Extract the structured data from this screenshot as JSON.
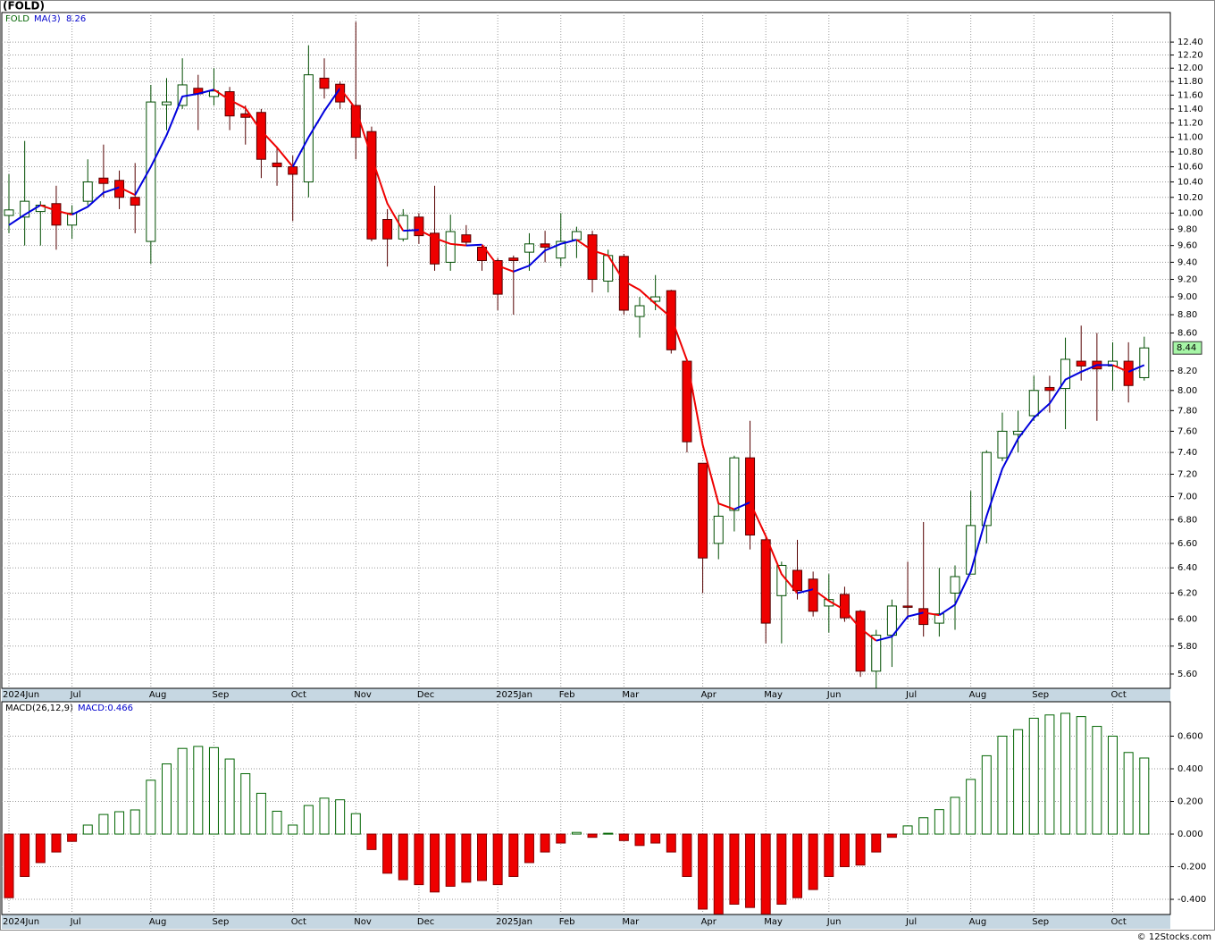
{
  "chart_data": [
    {
      "type": "candlestick",
      "title": "(FOLD)",
      "symbol": "FOLD",
      "log_scale": true,
      "grid": true,
      "categories": [
        "2024Jun",
        null,
        null,
        null,
        "Jul",
        null,
        null,
        null,
        null,
        "Aug",
        null,
        null,
        null,
        "Sep",
        null,
        null,
        null,
        null,
        "Oct",
        null,
        null,
        null,
        "Nov",
        null,
        null,
        null,
        "Dec",
        null,
        null,
        null,
        null,
        "2025Jan",
        null,
        null,
        null,
        "Feb",
        null,
        null,
        null,
        "Mar",
        null,
        null,
        null,
        null,
        "Apr",
        null,
        null,
        null,
        "May",
        null,
        null,
        null,
        "Jun",
        null,
        null,
        null,
        null,
        "Jul",
        null,
        null,
        null,
        "Aug",
        null,
        null,
        null,
        "Sep",
        null,
        null,
        null,
        null,
        "Oct",
        null,
        null
      ],
      "open": [
        9.97,
        9.95,
        10.02,
        10.12,
        9.85,
        10.15,
        10.45,
        10.42,
        10.2,
        9.65,
        11.46,
        11.45,
        11.7,
        11.58,
        11.65,
        11.33,
        11.35,
        10.65,
        10.6,
        10.4,
        11.85,
        11.76,
        11.45,
        11.08,
        9.92,
        9.68,
        9.95,
        9.75,
        9.4,
        9.73,
        9.58,
        9.42,
        9.45,
        9.52,
        9.62,
        9.45,
        9.67,
        9.73,
        9.18,
        9.47,
        8.78,
        8.95,
        9.07,
        8.3,
        7.3,
        6.6,
        6.88,
        7.35,
        6.63,
        6.18,
        6.38,
        6.31,
        6.1,
        6.19,
        6.06,
        5.62,
        5.88,
        6.1,
        6.08,
        5.97,
        6.2,
        6.35,
        6.75,
        7.35,
        7.57,
        7.75,
        8.03,
        8.02,
        8.3,
        8.3,
        8.25,
        8.3,
        8.13
      ],
      "high": [
        10.5,
        10.95,
        10.15,
        10.35,
        10.1,
        10.7,
        10.9,
        10.55,
        10.65,
        11.75,
        11.85,
        12.15,
        11.9,
        12.0,
        11.72,
        11.45,
        11.4,
        10.85,
        10.75,
        12.35,
        12.15,
        11.8,
        12.72,
        11.15,
        10.05,
        10.05,
        10.0,
        10.35,
        9.98,
        9.85,
        9.6,
        9.45,
        9.48,
        9.75,
        9.78,
        10.0,
        9.83,
        9.78,
        9.55,
        9.5,
        9.0,
        9.25,
        9.08,
        8.3,
        7.3,
        6.95,
        7.37,
        7.7,
        6.65,
        6.45,
        6.63,
        6.37,
        6.35,
        6.25,
        6.07,
        5.92,
        6.15,
        6.45,
        6.78,
        6.4,
        6.42,
        7.05,
        7.42,
        7.78,
        7.8,
        8.15,
        8.15,
        8.55,
        8.68,
        8.6,
        8.5,
        8.5,
        8.56
      ],
      "low": [
        9.75,
        9.6,
        9.6,
        9.55,
        9.68,
        10.1,
        10.2,
        10.05,
        9.75,
        9.38,
        11.1,
        11.4,
        11.1,
        11.45,
        11.1,
        10.9,
        10.45,
        10.35,
        9.9,
        10.2,
        11.55,
        11.4,
        10.7,
        9.65,
        9.35,
        9.65,
        9.62,
        9.3,
        9.3,
        9.6,
        9.3,
        8.85,
        8.8,
        9.3,
        9.4,
        9.35,
        9.45,
        9.05,
        9.05,
        8.8,
        8.55,
        8.85,
        8.38,
        7.4,
        6.2,
        6.47,
        6.7,
        6.55,
        5.82,
        5.82,
        6.15,
        6.02,
        5.9,
        5.98,
        5.58,
        5.5,
        5.65,
        6.0,
        5.87,
        5.87,
        5.92,
        6.35,
        6.6,
        7.32,
        7.4,
        7.7,
        7.78,
        7.62,
        8.1,
        7.7,
        8.0,
        7.88,
        8.1
      ],
      "close": [
        10.04,
        10.15,
        10.1,
        9.85,
        10.0,
        10.4,
        10.38,
        10.2,
        10.1,
        11.5,
        11.5,
        11.75,
        11.62,
        11.66,
        11.3,
        11.28,
        10.7,
        10.6,
        10.5,
        11.9,
        11.7,
        11.5,
        11.0,
        9.68,
        9.68,
        9.97,
        9.72,
        9.38,
        9.77,
        9.64,
        9.42,
        9.03,
        9.42,
        9.62,
        9.58,
        9.65,
        9.77,
        9.2,
        9.48,
        8.85,
        8.9,
        9.0,
        8.42,
        7.5,
        6.48,
        6.83,
        7.35,
        6.67,
        5.97,
        6.42,
        6.22,
        6.06,
        6.15,
        6.01,
        5.62,
        5.88,
        6.1,
        6.09,
        5.96,
        6.04,
        6.33,
        6.75,
        7.4,
        7.6,
        7.6,
        8.0,
        8.0,
        8.32,
        8.25,
        8.22,
        8.3,
        8.05,
        8.44
      ],
      "ma": {
        "name": "MA(3)",
        "up_color": "#0000dd",
        "down_color": "#ee0000",
        "values": [
          9.85,
          9.98,
          10.1,
          10.03,
          9.98,
          10.08,
          10.26,
          10.33,
          10.23,
          10.6,
          11.03,
          11.58,
          11.62,
          11.68,
          11.53,
          11.41,
          11.09,
          10.86,
          10.6,
          11.0,
          11.37,
          11.7,
          11.4,
          10.73,
          10.12,
          9.78,
          9.79,
          9.69,
          9.62,
          9.6,
          9.61,
          9.36,
          9.29,
          9.36,
          9.54,
          9.62,
          9.67,
          9.54,
          9.48,
          9.18,
          9.08,
          8.92,
          8.77,
          8.31,
          7.47,
          6.94,
          6.89,
          6.95,
          6.66,
          6.35,
          6.2,
          6.23,
          6.14,
          6.07,
          5.93,
          5.84,
          5.87,
          6.02,
          6.05,
          6.03,
          6.11,
          6.37,
          6.83,
          7.25,
          7.53,
          7.73,
          7.87,
          8.11,
          8.19,
          8.26,
          8.26,
          8.19,
          8.26
        ]
      },
      "up_color": "#ffffff",
      "down_color": "#ee0000",
      "ylim": [
        5.5,
        12.87
      ],
      "yticks": [
        {
          "value": 5.6,
          "label": "5.60"
        },
        {
          "value": 5.8,
          "label": "5.80"
        },
        {
          "value": 6,
          "label": "6.00"
        },
        {
          "value": 6.2,
          "label": "6.20"
        },
        {
          "value": 6.4,
          "label": "6.40"
        },
        {
          "value": 6.6,
          "label": "6.60"
        },
        {
          "value": 6.8,
          "label": "6.80"
        },
        {
          "value": 7,
          "label": "7.00"
        },
        {
          "value": 7.2,
          "label": "7.20"
        },
        {
          "value": 7.4,
          "label": "7.40"
        },
        {
          "value": 7.6,
          "label": "7.60"
        },
        {
          "value": 7.8,
          "label": "7.80"
        },
        {
          "value": 8,
          "label": "8.00"
        },
        {
          "value": 8.2,
          "label": "8.20"
        },
        {
          "value": 8.6,
          "label": "8.60"
        },
        {
          "value": 8.8,
          "label": "8.80"
        },
        {
          "value": 9,
          "label": "9.00"
        },
        {
          "value": 9.2,
          "label": "9.20"
        },
        {
          "value": 9.4,
          "label": "9.40"
        },
        {
          "value": 9.6,
          "label": "9.60"
        },
        {
          "value": 9.8,
          "label": "9.80"
        },
        {
          "value": 10,
          "label": "10.00"
        },
        {
          "value": 10.2,
          "label": "10.20"
        },
        {
          "value": 10.4,
          "label": "10.40"
        },
        {
          "value": 10.6,
          "label": "10.60"
        },
        {
          "value": 10.8,
          "label": "10.80"
        },
        {
          "value": 11,
          "label": "11.00"
        },
        {
          "value": 11.2,
          "label": "11.20"
        },
        {
          "value": 11.4,
          "label": "11.40"
        },
        {
          "value": 11.6,
          "label": "11.60"
        },
        {
          "value": 11.8,
          "label": "11.80"
        },
        {
          "value": 12,
          "label": "12.00"
        },
        {
          "value": 12.2,
          "label": "12.20"
        },
        {
          "value": 12.4,
          "label": "12.40"
        }
      ]
    },
    {
      "type": "histogram-bar",
      "current_label": "MACD:0.466",
      "categories": [
        "2024Jun",
        null,
        null,
        null,
        "Jul",
        null,
        null,
        null,
        null,
        "Aug",
        null,
        null,
        null,
        "Sep",
        null,
        null,
        null,
        null,
        "Oct",
        null,
        null,
        null,
        "Nov",
        null,
        null,
        null,
        "Dec",
        null,
        null,
        null,
        null,
        "2025Jan",
        null,
        null,
        null,
        "Feb",
        null,
        null,
        null,
        "Mar",
        null,
        null,
        null,
        null,
        "Apr",
        null,
        null,
        null,
        "May",
        null,
        null,
        null,
        "Jun",
        null,
        null,
        null,
        null,
        "Jul",
        null,
        null,
        null,
        "Aug",
        null,
        null,
        null,
        "Sep",
        null,
        null,
        null,
        null,
        "Oct",
        null,
        null
      ],
      "series": [
        {
          "name": "MACD(26,12,9)",
          "color": "#006400",
          "negative_color": "#ee0000",
          "values": [
            -0.39,
            -0.26,
            -0.175,
            -0.11,
            -0.045,
            0.055,
            0.12,
            0.137,
            0.148,
            0.33,
            0.43,
            0.525,
            0.537,
            0.53,
            0.46,
            0.37,
            0.25,
            0.14,
            0.055,
            0.175,
            0.22,
            0.21,
            0.125,
            -0.095,
            -0.24,
            -0.28,
            -0.31,
            -0.355,
            -0.32,
            -0.295,
            -0.285,
            -0.31,
            -0.26,
            -0.175,
            -0.11,
            -0.055,
            0.01,
            -0.02,
            0.005,
            -0.04,
            -0.07,
            -0.055,
            -0.11,
            -0.26,
            -0.46,
            -0.49,
            -0.43,
            -0.45,
            -0.49,
            -0.43,
            -0.39,
            -0.34,
            -0.26,
            -0.2,
            -0.19,
            -0.11,
            -0.02,
            0.05,
            0.1,
            0.15,
            0.225,
            0.335,
            0.48,
            0.6,
            0.64,
            0.71,
            0.73,
            0.74,
            0.72,
            0.66,
            0.6,
            0.5,
            0.466
          ]
        }
      ],
      "ylim": [
        -0.493,
        0.811
      ],
      "yticks": [
        {
          "value": -0.4,
          "label": "-0.400"
        },
        {
          "value": -0.2,
          "label": "-0.200"
        },
        {
          "value": 0,
          "label": "0.000"
        },
        {
          "value": 0.2,
          "label": "0.200"
        },
        {
          "value": 0.4,
          "label": "0.400"
        },
        {
          "value": 0.6,
          "label": "0.600"
        }
      ]
    }
  ],
  "footer": "© 12Stocks.com"
}
